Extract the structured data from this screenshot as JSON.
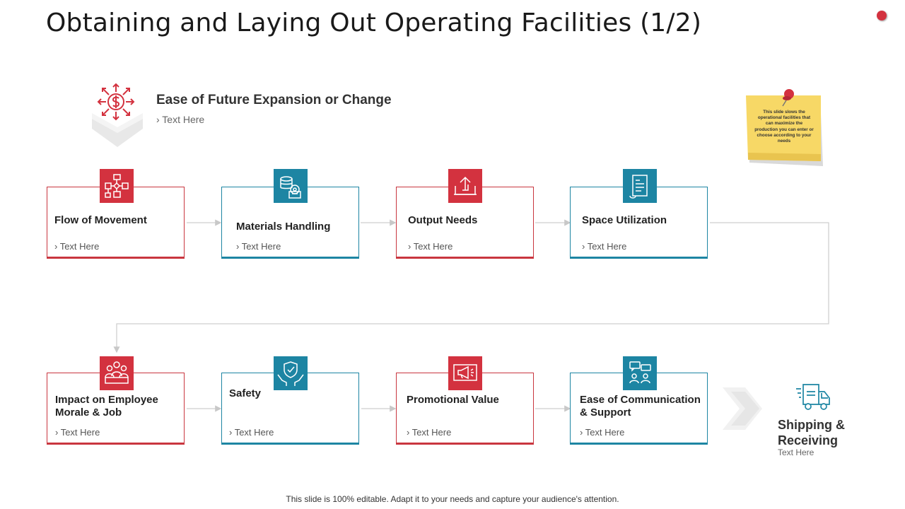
{
  "title": "Obtaining and Laying Out Operating Facilities (1/2)",
  "expansion": {
    "heading": "Ease of Future Expansion or Change",
    "text": "› Text Here",
    "icon": "dollar-expansion-icon"
  },
  "sticky_note": {
    "text": "This slide slows the operational facilities that can maximize the production you can enter or choose according to your needs"
  },
  "row1": [
    {
      "title": "Flow of Movement",
      "text": "› Text Here",
      "icon": "flowchart-icon",
      "color": "#c9363f"
    },
    {
      "title": "Materials Handling",
      "text": "› Text Here",
      "icon": "materials-handling-icon",
      "color": "#1d85a3"
    },
    {
      "title": "Output Needs",
      "text": "› Text Here",
      "icon": "output-upload-icon",
      "color": "#c9363f"
    },
    {
      "title": "Space Utilization",
      "text": "› Text Here",
      "icon": "document-list-icon",
      "color": "#1d85a3"
    }
  ],
  "row2": [
    {
      "title": "Impact on Employee\nMorale & Job",
      "text": "› Text Here",
      "icon": "team-people-icon",
      "color": "#c9363f"
    },
    {
      "title": "Safety",
      "text": "› Text Here",
      "icon": "hands-shield-icon",
      "color": "#1d85a3"
    },
    {
      "title": "Promotional Value",
      "text": "› Text Here",
      "icon": "megaphone-icon",
      "color": "#c9363f"
    },
    {
      "title": "Ease of Communication\n & Support",
      "text": "› Text Here",
      "icon": "chat-people-icon",
      "color": "#1d85a3"
    }
  ],
  "shipping": {
    "title": "Shipping &\nReceiving",
    "text": "Text Here",
    "icon": "delivery-truck-icon"
  },
  "footer": "This slide is 100% editable. Adapt it to your needs and capture your audience's attention."
}
